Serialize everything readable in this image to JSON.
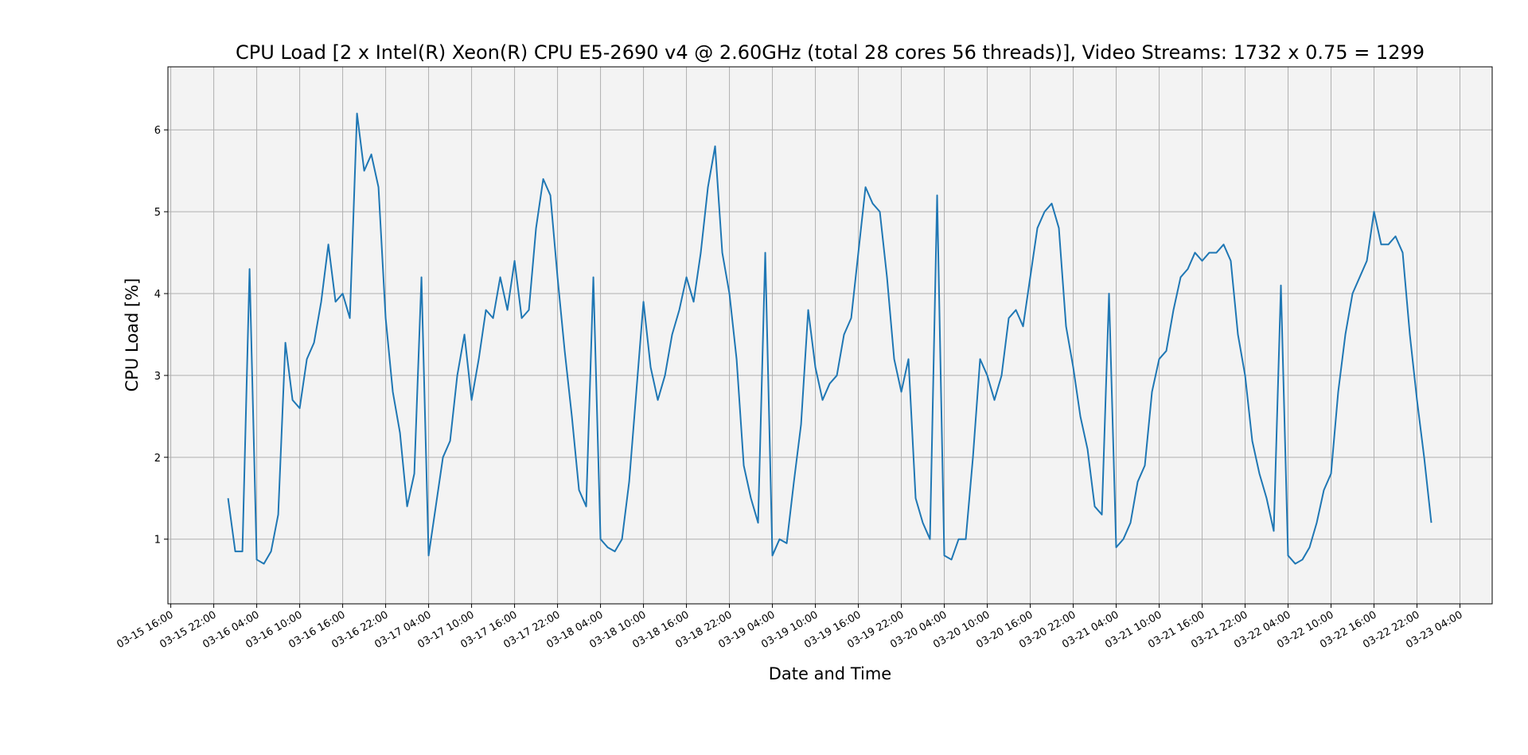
{
  "chart_data": {
    "type": "line",
    "title": "CPU Load [2 x Intel(R) Xeon(R) CPU E5-2690 v4 @ 2.60GHz (total 28 cores 56 threads)], Video Streams: 1732 x 0.75 = 1299",
    "xlabel": "Date and Time",
    "ylabel": "CPU Load [%]",
    "color": "#1f77b4",
    "grid": true,
    "xlim": [
      "03-15 15:36",
      "03-23 08:30"
    ],
    "xticks": [
      "03-15 16:00",
      "03-15 22:00",
      "03-16 04:00",
      "03-16 10:00",
      "03-16 16:00",
      "03-16 22:00",
      "03-17 04:00",
      "03-17 10:00",
      "03-17 16:00",
      "03-17 22:00",
      "03-18 04:00",
      "03-18 10:00",
      "03-18 16:00",
      "03-18 22:00",
      "03-19 04:00",
      "03-19 10:00",
      "03-19 16:00",
      "03-19 22:00",
      "03-20 04:00",
      "03-20 10:00",
      "03-20 16:00",
      "03-20 22:00",
      "03-21 04:00",
      "03-21 10:00",
      "03-21 16:00",
      "03-21 22:00",
      "03-22 04:00",
      "03-22 10:00",
      "03-22 16:00",
      "03-22 22:00",
      "03-23 04:00"
    ],
    "ylim": [
      0.21,
      6.77
    ],
    "yticks": [
      1,
      2,
      3,
      4,
      5,
      6
    ],
    "x": [
      "03-16 00:00",
      "03-16 01:00",
      "03-16 02:00",
      "03-16 03:00",
      "03-16 04:00",
      "03-16 05:00",
      "03-16 06:00",
      "03-16 07:00",
      "03-16 08:00",
      "03-16 09:00",
      "03-16 10:00",
      "03-16 11:00",
      "03-16 12:00",
      "03-16 13:00",
      "03-16 14:00",
      "03-16 15:00",
      "03-16 16:00",
      "03-16 17:00",
      "03-16 18:00",
      "03-16 19:00",
      "03-16 20:00",
      "03-16 21:00",
      "03-16 22:00",
      "03-16 23:00",
      "03-17 00:00",
      "03-17 01:00",
      "03-17 02:00",
      "03-17 03:00",
      "03-17 04:00",
      "03-17 05:00",
      "03-17 06:00",
      "03-17 07:00",
      "03-17 08:00",
      "03-17 09:00",
      "03-17 10:00",
      "03-17 11:00",
      "03-17 12:00",
      "03-17 13:00",
      "03-17 14:00",
      "03-17 15:00",
      "03-17 16:00",
      "03-17 17:00",
      "03-17 18:00",
      "03-17 19:00",
      "03-17 20:00",
      "03-17 21:00",
      "03-17 22:00",
      "03-17 23:00",
      "03-18 00:00",
      "03-18 01:00",
      "03-18 02:00",
      "03-18 03:00",
      "03-18 04:00",
      "03-18 05:00",
      "03-18 06:00",
      "03-18 07:00",
      "03-18 08:00",
      "03-18 09:00",
      "03-18 10:00",
      "03-18 11:00",
      "03-18 12:00",
      "03-18 13:00",
      "03-18 14:00",
      "03-18 15:00",
      "03-18 16:00",
      "03-18 17:00",
      "03-18 18:00",
      "03-18 19:00",
      "03-18 20:00",
      "03-18 21:00",
      "03-18 22:00",
      "03-18 23:00",
      "03-19 00:00",
      "03-19 01:00",
      "03-19 02:00",
      "03-19 03:00",
      "03-19 04:00",
      "03-19 05:00",
      "03-19 06:00",
      "03-19 07:00",
      "03-19 08:00",
      "03-19 09:00",
      "03-19 10:00",
      "03-19 11:00",
      "03-19 12:00",
      "03-19 13:00",
      "03-19 14:00",
      "03-19 15:00",
      "03-19 16:00",
      "03-19 17:00",
      "03-19 18:00",
      "03-19 19:00",
      "03-19 20:00",
      "03-19 21:00",
      "03-19 22:00",
      "03-19 23:00",
      "03-20 00:00",
      "03-20 01:00",
      "03-20 02:00",
      "03-20 03:00",
      "03-20 04:00",
      "03-20 05:00",
      "03-20 06:00",
      "03-20 07:00",
      "03-20 08:00",
      "03-20 09:00",
      "03-20 10:00",
      "03-20 11:00",
      "03-20 12:00",
      "03-20 13:00",
      "03-20 14:00",
      "03-20 15:00",
      "03-20 16:00",
      "03-20 17:00",
      "03-20 18:00",
      "03-20 19:00",
      "03-20 20:00",
      "03-20 21:00",
      "03-20 22:00",
      "03-20 23:00",
      "03-21 00:00",
      "03-21 01:00",
      "03-21 02:00",
      "03-21 03:00",
      "03-21 04:00",
      "03-21 05:00",
      "03-21 06:00",
      "03-21 07:00",
      "03-21 08:00",
      "03-21 09:00",
      "03-21 10:00",
      "03-21 11:00",
      "03-21 12:00",
      "03-21 13:00",
      "03-21 14:00",
      "03-21 15:00",
      "03-21 16:00",
      "03-21 17:00",
      "03-21 18:00",
      "03-21 19:00",
      "03-21 20:00",
      "03-21 21:00",
      "03-21 22:00",
      "03-21 23:00",
      "03-22 00:00",
      "03-22 01:00",
      "03-22 02:00",
      "03-22 03:00",
      "03-22 04:00",
      "03-22 05:00",
      "03-22 06:00",
      "03-22 07:00",
      "03-22 08:00",
      "03-22 09:00",
      "03-22 10:00",
      "03-22 11:00",
      "03-22 12:00",
      "03-22 13:00",
      "03-22 14:00",
      "03-22 15:00",
      "03-22 16:00",
      "03-22 17:00",
      "03-22 18:00",
      "03-22 19:00",
      "03-22 20:00",
      "03-22 21:00",
      "03-22 22:00",
      "03-22 23:00",
      "03-23 00:00"
    ],
    "values": [
      1.5,
      0.85,
      0.85,
      4.3,
      0.75,
      0.7,
      0.85,
      1.3,
      3.4,
      2.7,
      2.6,
      3.2,
      3.4,
      3.9,
      4.6,
      3.9,
      4.0,
      3.7,
      6.2,
      5.5,
      5.7,
      5.3,
      3.7,
      2.8,
      2.3,
      1.4,
      1.8,
      4.2,
      0.8,
      1.4,
      2.0,
      2.2,
      3.0,
      3.5,
      2.7,
      3.2,
      3.8,
      3.7,
      4.2,
      3.8,
      4.4,
      3.7,
      3.8,
      4.8,
      5.4,
      5.2,
      4.2,
      3.3,
      2.5,
      1.6,
      1.4,
      4.2,
      1.0,
      0.9,
      0.85,
      1.0,
      1.7,
      2.8,
      3.9,
      3.1,
      2.7,
      3.0,
      3.5,
      3.8,
      4.2,
      3.9,
      4.5,
      5.3,
      5.8,
      4.5,
      4.0,
      3.2,
      1.9,
      1.5,
      1.2,
      4.5,
      0.8,
      1.0,
      0.95,
      1.7,
      2.4,
      3.8,
      3.1,
      2.7,
      2.9,
      3.0,
      3.5,
      3.7,
      4.5,
      5.3,
      5.1,
      5.0,
      4.2,
      3.2,
      2.8,
      3.2,
      1.5,
      1.2,
      1.0,
      5.2,
      0.8,
      0.75,
      1.0,
      1.0,
      2.0,
      3.2,
      3.0,
      2.7,
      3.0,
      3.7,
      3.8,
      3.6,
      4.2,
      4.8,
      5.0,
      5.1,
      4.8,
      3.6,
      3.1,
      2.5,
      2.1,
      1.4,
      1.3,
      4.0,
      0.9,
      1.0,
      1.2,
      1.7,
      1.9,
      2.8,
      3.2,
      3.3,
      3.8,
      4.2,
      4.3,
      4.5,
      4.4,
      4.5,
      4.5,
      4.6,
      4.4,
      3.5,
      3.0,
      2.2,
      1.8,
      1.5,
      1.1,
      4.1,
      0.8,
      0.7,
      0.75,
      0.9,
      1.2,
      1.6,
      1.8,
      2.8,
      3.5,
      4.0,
      4.2,
      4.4,
      5.0,
      4.6,
      4.6,
      4.7,
      4.5,
      3.5,
      2.7,
      2.0,
      1.2
    ]
  }
}
